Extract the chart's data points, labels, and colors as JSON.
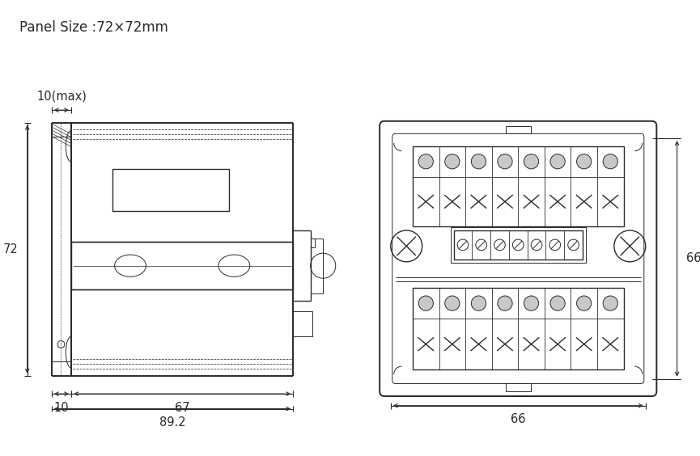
{
  "title": "Panel Size :72×72mm",
  "bg_color": "#ffffff",
  "line_color": "#2a2a2a",
  "dim_color": "#2a2a2a",
  "fig_width": 8.65,
  "fig_height": 5.64,
  "font_size": 12,
  "dim_font_size": 10.5
}
